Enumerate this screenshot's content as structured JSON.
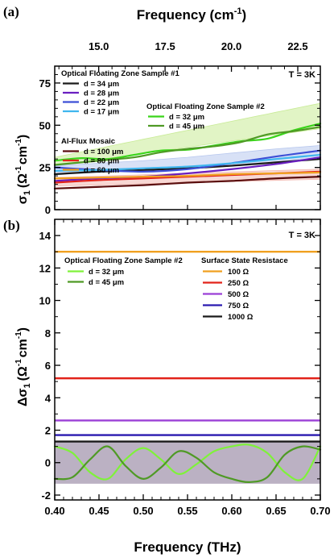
{
  "chart_data": [
    {
      "type": "line",
      "panel_label": "(a)",
      "top_axis_label": "Frequency (cm",
      "top_axis_label_sup": "-1",
      "top_axis_label_end": ")",
      "top_ticks": [
        15.0,
        17.5,
        20.0,
        22.5
      ],
      "top_tick_labels": [
        "15.0",
        "17.5",
        "20.0",
        "22.5"
      ],
      "ylabel_main": "σ",
      "ylabel_sub": "1",
      "ylabel_units": "(Ω",
      "ylabel_sup1": "-1",
      "ylabel_mid": "cm",
      "ylabel_sup2": "-1",
      "ylabel_end": ")",
      "xlim": [
        0.4,
        0.7
      ],
      "ylim": [
        0,
        85
      ],
      "yticks": [
        0,
        25,
        50,
        75
      ],
      "ytick_labels": [
        "0",
        "25",
        "50",
        "75"
      ],
      "temperature_label": "T = 3K",
      "legend_groups": [
        {
          "title": "Optical Floating Zone Sample #1",
          "entries": [
            "d = 34 μm",
            "d = 28 μm",
            "d = 22 μm",
            "d = 17 μm"
          ]
        },
        {
          "title": "Optical Floating Zone Sample #2",
          "entries": [
            "d = 32 μm",
            "d = 45 μm"
          ]
        },
        {
          "title": "Al-Flux Mosaic",
          "entries": [
            "d = 100 μm",
            "d = 80 μm",
            "d = 60 μm"
          ]
        }
      ],
      "series": [
        {
          "name": "d = 34 μm",
          "color": "#1a1a1a",
          "x": [
            0.4,
            0.45,
            0.5,
            0.55,
            0.6,
            0.65,
            0.7
          ],
          "y": [
            21,
            22.5,
            23.5,
            24.5,
            26,
            28,
            30
          ]
        },
        {
          "name": "d = 28 μm",
          "color": "#6a1fc0",
          "x": [
            0.4,
            0.45,
            0.5,
            0.55,
            0.6,
            0.65,
            0.7
          ],
          "y": [
            17,
            18.5,
            19.5,
            21.5,
            24,
            27,
            31
          ]
        },
        {
          "name": "d = 22 μm",
          "color": "#3d4fd6",
          "x": [
            0.4,
            0.45,
            0.5,
            0.55,
            0.6,
            0.65,
            0.7
          ],
          "y": [
            25,
            23.5,
            22.5,
            24,
            27.5,
            31.5,
            35
          ]
        },
        {
          "name": "d = 17 μm",
          "color": "#3fb6ee",
          "x": [
            0.4,
            0.45,
            0.5,
            0.55,
            0.6,
            0.65,
            0.7
          ],
          "y": [
            23,
            23.5,
            24.5,
            25.5,
            27.5,
            30,
            32.5
          ]
        },
        {
          "name": "d = 32 μm",
          "color": "#3ad41a",
          "x": [
            0.4,
            0.43,
            0.46,
            0.49,
            0.52,
            0.55,
            0.58,
            0.61,
            0.64,
            0.67,
            0.7
          ],
          "y": [
            29,
            30.5,
            30,
            32.5,
            35,
            35.5,
            38,
            40.5,
            42,
            47,
            51
          ]
        },
        {
          "name": "d = 45 μm",
          "color": "#4f9a25",
          "x": [
            0.4,
            0.43,
            0.46,
            0.49,
            0.52,
            0.55,
            0.58,
            0.61,
            0.64,
            0.67,
            0.7
          ],
          "y": [
            26.5,
            28,
            29.5,
            31,
            34,
            36,
            37.5,
            40,
            44.5,
            46.5,
            49
          ]
        },
        {
          "name": "d = 100 μm",
          "color": "#5a0d0d",
          "x": [
            0.4,
            0.45,
            0.5,
            0.55,
            0.6,
            0.65,
            0.7
          ],
          "y": [
            12.5,
            13.5,
            14.5,
            16,
            17,
            18.5,
            19.5
          ]
        },
        {
          "name": "d = 80 μm",
          "color": "#e2231a",
          "x": [
            0.4,
            0.45,
            0.5,
            0.55,
            0.6,
            0.65,
            0.7
          ],
          "y": [
            16,
            17.5,
            18.5,
            19.5,
            20.5,
            21.5,
            22.5
          ]
        },
        {
          "name": "d = 60 μm",
          "color": "#f0a020",
          "x": [
            0.4,
            0.45,
            0.5,
            0.55,
            0.6,
            0.65,
            0.7
          ],
          "y": [
            18.5,
            19,
            19.5,
            20,
            21,
            21.5,
            22
          ]
        }
      ],
      "bands": [
        {
          "color": "#c8eb96",
          "x": [
            0.4,
            0.7
          ],
          "lower": [
            26,
            48
          ],
          "upper": [
            31,
            63
          ]
        },
        {
          "color": "#b8c8ee",
          "x": [
            0.4,
            0.45,
            0.5,
            0.55,
            0.6,
            0.65,
            0.7
          ],
          "lower": [
            21,
            22,
            23,
            24,
            26,
            28,
            31
          ],
          "upper": [
            26,
            27.5,
            29,
            31,
            33.5,
            36,
            38
          ]
        },
        {
          "color": "#f2b8b0",
          "x": [
            0.4,
            0.7
          ],
          "lower": [
            14,
            18
          ],
          "upper": [
            19,
            24
          ]
        }
      ]
    },
    {
      "type": "line",
      "panel_label": "(b)",
      "xlabel": "Frequency (THz)",
      "ylabel_main": "Δσ",
      "ylabel_sub": "1",
      "ylabel_units": "(Ω",
      "ylabel_sup1": "-1",
      "ylabel_mid": "cm",
      "ylabel_sup2": "-1",
      "ylabel_end": ")",
      "xlim": [
        0.4,
        0.7
      ],
      "ylim": [
        -2.3,
        15
      ],
      "xticks": [
        0.4,
        0.45,
        0.5,
        0.55,
        0.6,
        0.65,
        0.7
      ],
      "xtick_labels": [
        "0.40",
        "0.45",
        "0.50",
        "0.55",
        "0.60",
        "0.65",
        "0.70"
      ],
      "yticks": [
        -2,
        0,
        2,
        4,
        6,
        8,
        10,
        12,
        14
      ],
      "ytick_labels": [
        "-2",
        "0",
        "2",
        "4",
        "6",
        "8",
        "10",
        "12",
        "14"
      ],
      "temperature_label": "T = 3K",
      "legend_groups": [
        {
          "title": "Optical Floating Zone Sample #2",
          "entries": [
            "d = 32 μm",
            "d = 45 μm"
          ]
        },
        {
          "title": "Surface State Resistace",
          "entries": [
            "100 Ω",
            "250 Ω",
            "500 Ω",
            "750 Ω",
            "1000 Ω"
          ]
        }
      ],
      "hlines": [
        {
          "name": "100 Ω",
          "color": "#f0a020",
          "y": 13.0
        },
        {
          "name": "250 Ω",
          "color": "#e2231a",
          "y": 5.2
        },
        {
          "name": "500 Ω",
          "color": "#9b3fd6",
          "y": 2.6
        },
        {
          "name": "750 Ω",
          "color": "#2a1ab0",
          "y": 1.7
        },
        {
          "name": "1000 Ω",
          "color": "#1a1a1a",
          "y": 1.3
        }
      ],
      "band": {
        "color": "#b4a9bd",
        "lower": -1.3,
        "upper": 1.3
      },
      "series": [
        {
          "name": "d = 32 μm",
          "color": "#7ff23a",
          "x": [
            0.4,
            0.42,
            0.44,
            0.46,
            0.48,
            0.5,
            0.52,
            0.54,
            0.56,
            0.58,
            0.6,
            0.62,
            0.64,
            0.66,
            0.68,
            0.7
          ],
          "y": [
            1.0,
            0.6,
            -0.6,
            -1.0,
            0.2,
            0.9,
            0.2,
            -0.7,
            -0.1,
            0.7,
            1.0,
            1.1,
            0.6,
            -0.6,
            -1.0,
            1.0
          ]
        },
        {
          "name": "d = 45 μm",
          "color": "#4f9a25",
          "x": [
            0.4,
            0.42,
            0.44,
            0.46,
            0.48,
            0.5,
            0.52,
            0.54,
            0.56,
            0.58,
            0.6,
            0.62,
            0.64,
            0.66,
            0.68,
            0.7
          ],
          "y": [
            -1.0,
            -0.9,
            0.2,
            1.0,
            -0.2,
            -1.0,
            -0.3,
            0.7,
            0.3,
            -0.6,
            -1.0,
            -1.2,
            -0.9,
            0.5,
            1.0,
            0.8
          ]
        }
      ]
    }
  ]
}
